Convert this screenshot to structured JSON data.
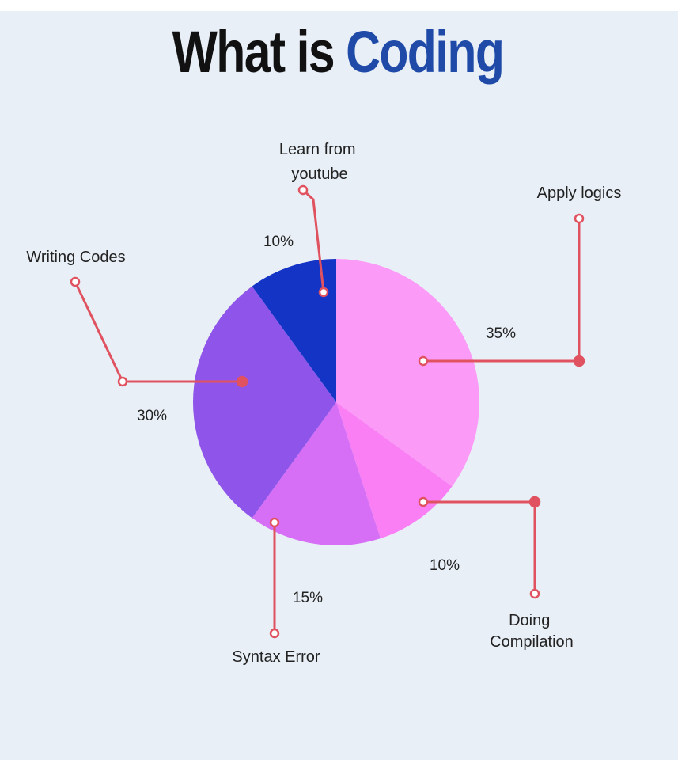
{
  "title": {
    "main": "What is",
    "accent": "Coding"
  },
  "colors": {
    "background": "#e8eff6",
    "title_text": "#111111",
    "title_accent": "#1f4aa8",
    "leader_line": "#e05260"
  },
  "chart_data": {
    "type": "pie",
    "title": "What is Coding",
    "slices": [
      {
        "label_lines": [
          "Apply logics"
        ],
        "value": 35,
        "value_label": "35%",
        "color": "#fb9bf7"
      },
      {
        "label_lines": [
          "Doing",
          "Compilation"
        ],
        "value": 10,
        "value_label": "10%",
        "color": "#fa7ff5"
      },
      {
        "label_lines": [
          "Syntax Error"
        ],
        "value": 15,
        "value_label": "15%",
        "color": "#d66ff5"
      },
      {
        "label_lines": [
          "Writing Codes"
        ],
        "value": 30,
        "value_label": "30%",
        "color": "#8f55ea"
      },
      {
        "label_lines": [
          "Learn from",
          "youtube"
        ],
        "value": 10,
        "value_label": "10%",
        "color": "#1434c6"
      }
    ],
    "start": "12 o'clock",
    "direction": "clockwise",
    "legend": "none"
  }
}
